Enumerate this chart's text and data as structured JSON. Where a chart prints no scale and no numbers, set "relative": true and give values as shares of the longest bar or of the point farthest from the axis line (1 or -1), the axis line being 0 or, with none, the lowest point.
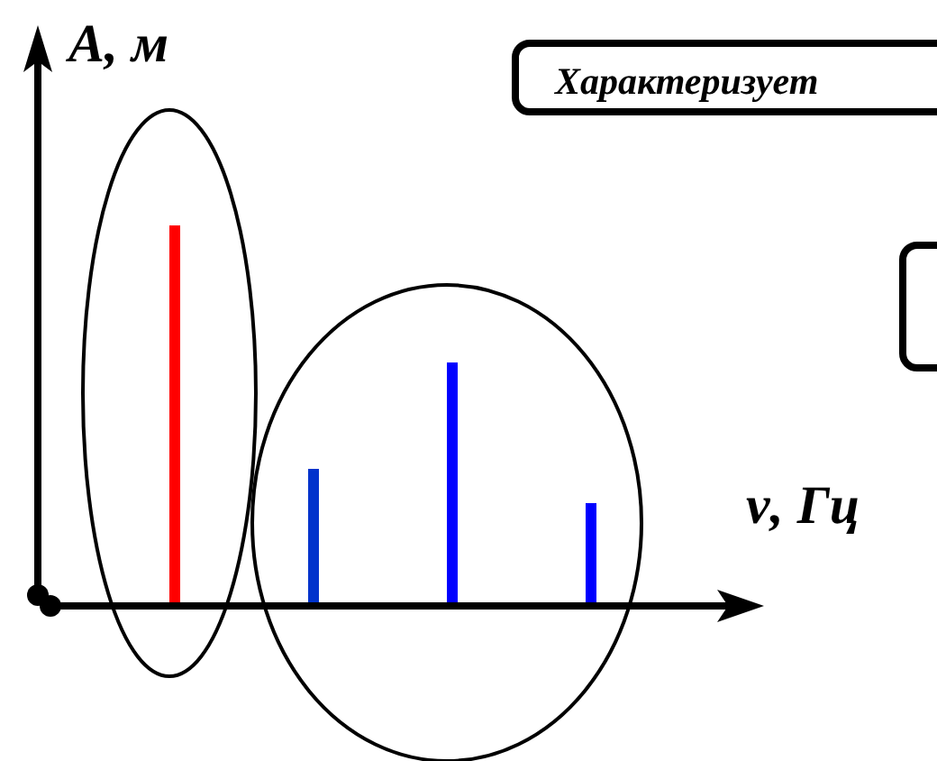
{
  "chart_data": {
    "type": "bar",
    "relative": true,
    "xlabel": "ν, Гц",
    "ylabel": "A, м",
    "annotations": [
      "Характеризует"
    ],
    "categories": [
      null,
      null,
      null,
      null
    ],
    "values": [
      1,
      0.36,
      0.64,
      0.27
    ],
    "colors": [
      "#ff0000",
      "#0033cc",
      "#0000ff",
      "#0000ff"
    ]
  }
}
